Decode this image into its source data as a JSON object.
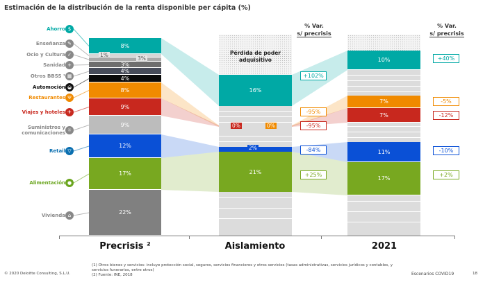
{
  "title": "Estimación de la distribución de la renta disponible per cápita (%)",
  "var_header": [
    "% Var.",
    "s/ precrisis"
  ],
  "loss_label": "Pérdida de poder adquisitivo",
  "chart_data": {
    "type": "stacked-bar",
    "title": "Estimación de la distribución de la renta disponible per cápita (%)",
    "categories": [
      "Precrisis ²",
      "Aislamiento",
      "2021"
    ],
    "series": [
      {
        "name": "Ahorro",
        "color": "#00a9a5",
        "icon": "piggy-bank-icon",
        "values": [
          "8%",
          "16%",
          "10%"
        ],
        "var": [
          "+102%",
          "+40%"
        ]
      },
      {
        "name": "Enseñanza",
        "color": "#d6d6d6",
        "icon": "education-icon",
        "values": [
          "1%",
          null,
          null
        ]
      },
      {
        "name": "Ocio y Cultura",
        "color": "#a8a8a8",
        "icon": "check-icon",
        "values": [
          "3%",
          null,
          null
        ]
      },
      {
        "name": "Sanidad",
        "color": "#6e6e6e",
        "icon": "health-icon",
        "values": [
          "3%",
          null,
          null
        ]
      },
      {
        "name": "Otros BBSS ¹",
        "color": "#474c5a",
        "icon": "grid-icon",
        "values": [
          "4%",
          null,
          null
        ]
      },
      {
        "name": "Automoción",
        "color": "#0a0a0a",
        "icon": "car-icon",
        "values": [
          "4%",
          null,
          null
        ]
      },
      {
        "name": "Restaurantes",
        "color": "#f08a00",
        "icon": "restaurant-icon",
        "values": [
          "8%",
          "0%",
          "7%"
        ],
        "var": [
          "-95%",
          "-5%"
        ]
      },
      {
        "name": "Viajes y hoteles",
        "color": "#c8281e",
        "icon": "plane-icon",
        "values": [
          "9%",
          "0%",
          "7%"
        ],
        "var": [
          "-95%",
          "-12%"
        ]
      },
      {
        "name": "Suministros y comunicaciones",
        "color": "#bcbcbc",
        "icon": "utilities-icon",
        "values": [
          "9%",
          null,
          null
        ]
      },
      {
        "name": "Retail",
        "color": "#0a50d6",
        "icon": "shopping-icon",
        "values": [
          "12%",
          "2%",
          "11%"
        ],
        "var": [
          "-84%",
          "-10%"
        ]
      },
      {
        "name": "Alimentación",
        "color": "#78a820",
        "icon": "apple-icon",
        "values": [
          "17%",
          "21%",
          "17%"
        ],
        "var": [
          "+25%",
          "+2%"
        ]
      },
      {
        "name": "Vivienda",
        "color": "#808080",
        "icon": "house-icon",
        "values": [
          "22%",
          null,
          null
        ]
      }
    ]
  },
  "label_colors": {
    "Ahorro": "#00a9a5",
    "Restaurantes": "#f08a00",
    "Viajes y hoteles": "#c8281e",
    "Retail": "#0a6fb0",
    "Alimentación": "#6aa51e",
    "Automoción": "#111",
    "default": "#888"
  },
  "footer": {
    "copyright": "© 2020 Deloitte Consulting, S.L.U.",
    "note1": "(1) Otros bienes y servicios: incluye protección social, seguros, servicios financieros y otros servicios (tasas administrativas, servicios jurídicos y contables, y servicios funerarios, entre otros)",
    "note2": "(2) Fuente: INE, 2018",
    "section": "Escenarios COVID19",
    "page": "18"
  }
}
